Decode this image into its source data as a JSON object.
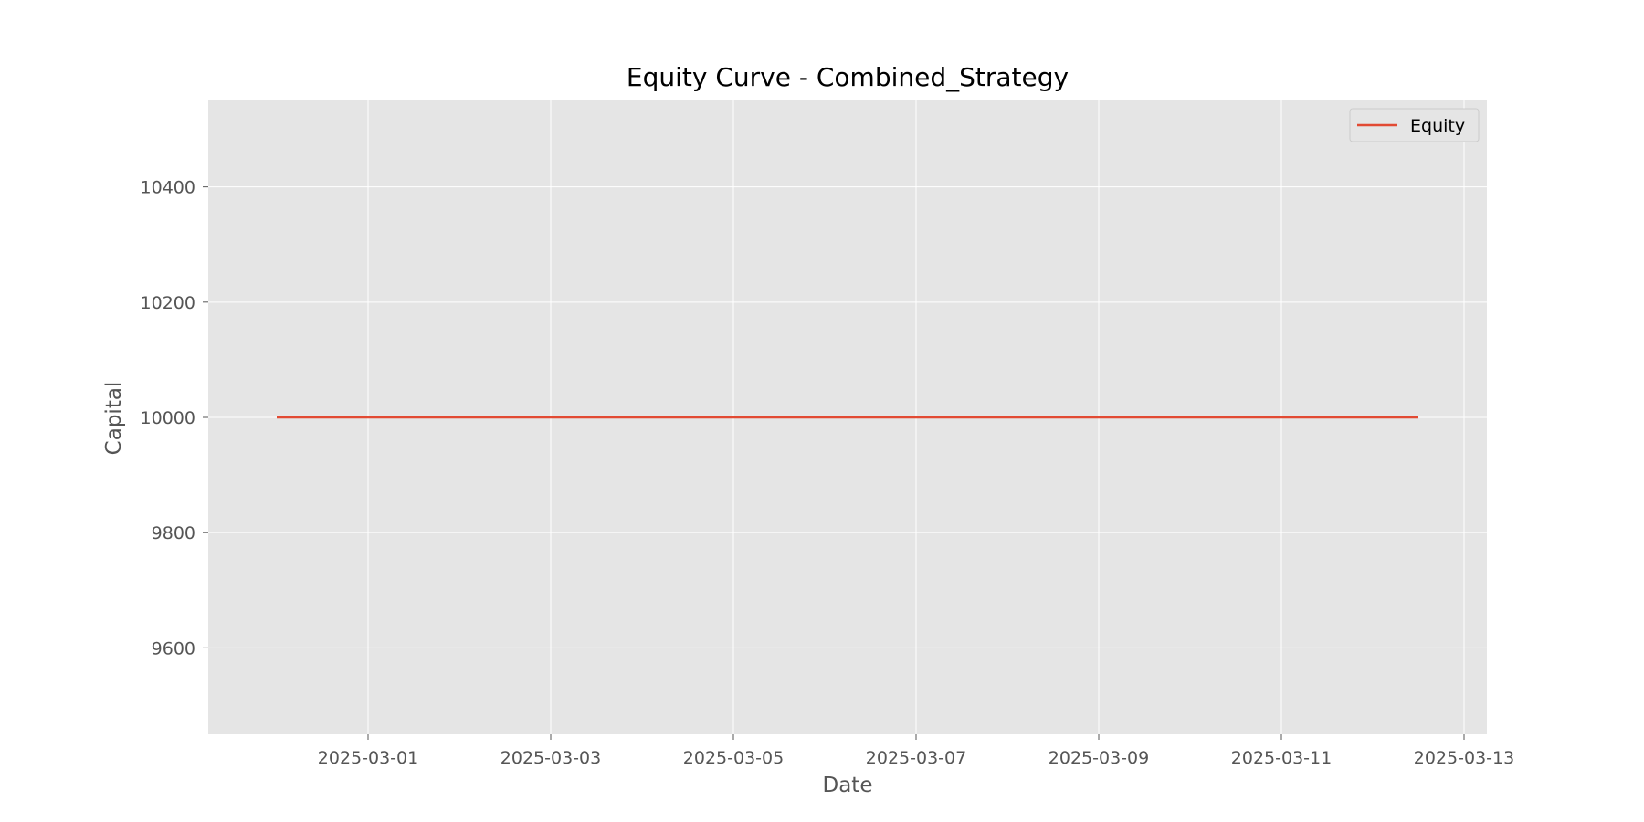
{
  "chart_data": {
    "type": "line",
    "title": "Equity Curve - Combined_Strategy",
    "xlabel": "Date",
    "ylabel": "Capital",
    "x": [
      "2025-02-28",
      "2025-03-13"
    ],
    "series": [
      {
        "name": "Equity",
        "color": "#E24A33",
        "x": [
          "2025-02-28",
          "2025-03-12 12:00"
        ],
        "values": [
          10000,
          10000
        ]
      }
    ],
    "x_ticks": [
      "2025-03-01",
      "2025-03-03",
      "2025-03-05",
      "2025-03-07",
      "2025-03-09",
      "2025-03-11",
      "2025-03-13"
    ],
    "y_ticks": [
      9600,
      9800,
      10000,
      10200,
      10400
    ],
    "xlim": [
      "2025-02-27 06:00",
      "2025-03-13 06:00"
    ],
    "ylim": [
      9450,
      10550
    ],
    "grid": true,
    "legend_position": "top-right",
    "style": {
      "plot_background": "#E5E5E5",
      "grid_color": "#FFFFFF",
      "tick_label_color": "#555555"
    }
  }
}
